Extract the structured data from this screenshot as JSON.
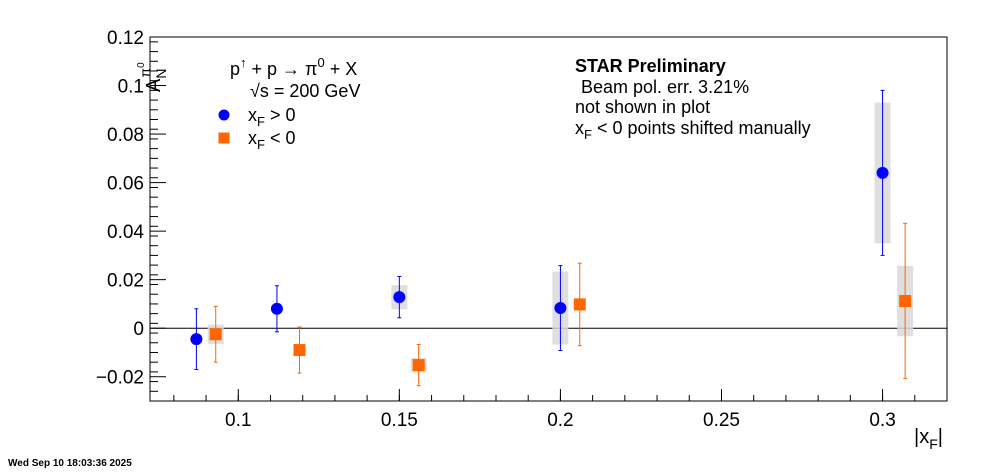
{
  "chart_data": {
    "type": "scatter",
    "xlabel": "|x_F|",
    "ylabel": "A_N^{π^0}",
    "xlim": [
      0.0726,
      0.32
    ],
    "ylim": [
      -0.03,
      0.12
    ],
    "x_ticks": [
      "0.1",
      "0.15",
      "0.2",
      "0.25",
      "0.3"
    ],
    "x_tick_values": [
      0.1,
      0.15,
      0.2,
      0.25,
      0.3
    ],
    "y_ticks": [
      "−0.02",
      "0",
      "0.02",
      "0.04",
      "0.06",
      "0.08",
      "0.1",
      "0.12"
    ],
    "y_tick_values": [
      -0.02,
      0,
      0.02,
      0.04,
      0.06,
      0.08,
      0.1,
      0.12
    ],
    "series": [
      {
        "name": "x_F > 0",
        "color": "#0000ff",
        "marker": "circle",
        "points": [
          {
            "x": 0.087,
            "y": -0.0045,
            "stat_err": 0.0125,
            "sys_err": 0.0
          },
          {
            "x": 0.112,
            "y": 0.008,
            "stat_err": 0.0095,
            "sys_err": 0.0
          },
          {
            "x": 0.15,
            "y": 0.0128,
            "stat_err": 0.0085,
            "sys_err": 0.005
          },
          {
            "x": 0.2,
            "y": 0.0083,
            "stat_err": 0.0175,
            "sys_err": 0.015
          },
          {
            "x": 0.3,
            "y": 0.064,
            "stat_err": 0.034,
            "sys_err": 0.029
          }
        ]
      },
      {
        "name": "x_F < 0",
        "color": "#ff6600",
        "marker": "square",
        "points": [
          {
            "x": 0.093,
            "y": -0.0025,
            "stat_err": 0.0115,
            "sys_err": 0.004
          },
          {
            "x": 0.119,
            "y": -0.009,
            "stat_err": 0.0095,
            "sys_err": 0.0
          },
          {
            "x": 0.156,
            "y": -0.0152,
            "stat_err": 0.0085,
            "sys_err": 0.003
          },
          {
            "x": 0.206,
            "y": 0.0098,
            "stat_err": 0.017,
            "sys_err": 0.0
          },
          {
            "x": 0.307,
            "y": 0.0112,
            "stat_err": 0.032,
            "sys_err": 0.0145
          }
        ]
      }
    ],
    "reference_line": {
      "y": 0
    },
    "legend": {
      "position": "top-left",
      "process": "p↑ + p → π0 + X",
      "energy": "√s = 200 GeV",
      "entries": [
        "x_F > 0",
        "x_F < 0"
      ]
    },
    "annotations": {
      "title": "STAR Preliminary",
      "lines": [
        "Beam pol. err. 3.21%",
        "not shown in plot",
        "x_F < 0 points shifted manually"
      ]
    },
    "grid": false
  },
  "footer": {
    "timestamp": "Wed Sep 10 18:03:36 2025"
  }
}
